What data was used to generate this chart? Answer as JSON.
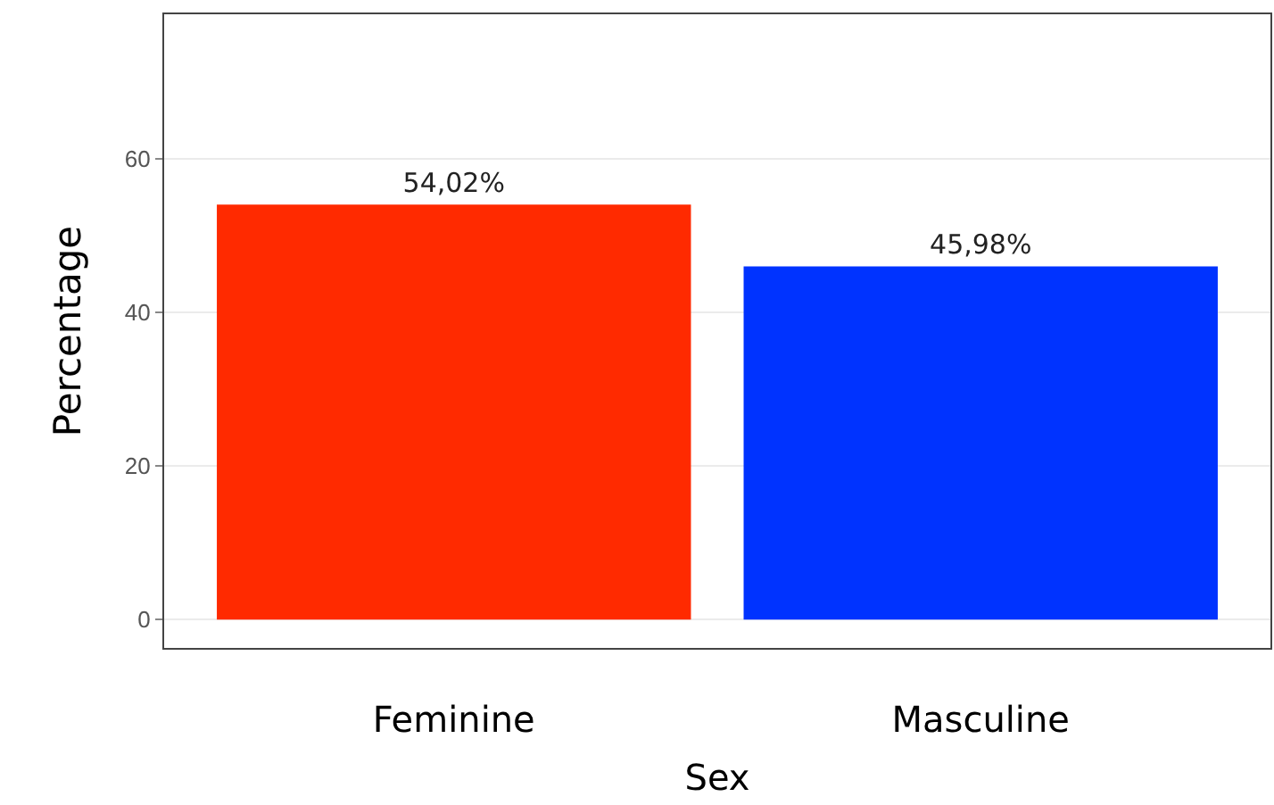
{
  "chart_data": {
    "type": "bar",
    "xlabel": "Sex",
    "ylabel": "Percentage",
    "categories": [
      "Feminine",
      "Masculine"
    ],
    "values": [
      54.02,
      45.98
    ],
    "colors": [
      "#ff2a00",
      "#0033ff"
    ],
    "value_labels": [
      "54,02%",
      "45,98%"
    ],
    "ylim": [
      -3.7,
      78.8
    ],
    "yticks": [
      0,
      20,
      40,
      60
    ],
    "grid": true
  }
}
